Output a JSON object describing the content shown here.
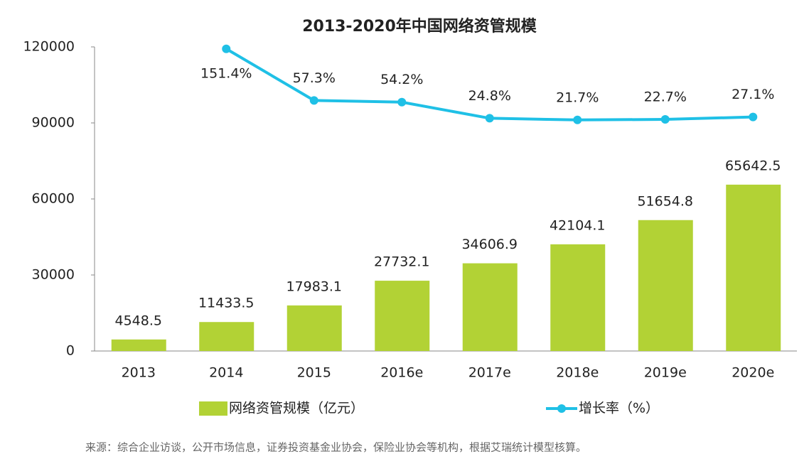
{
  "chart_data": {
    "type": "bar-line",
    "title": "2013-2020年中国网络资管规模",
    "categories": [
      "2013",
      "2014",
      "2015",
      "2016e",
      "2017e",
      "2018e",
      "2019e",
      "2020e"
    ],
    "series": [
      {
        "name": "网络资管规模（亿元）",
        "type": "bar",
        "color": "#b2d235",
        "values": [
          4548.5,
          11433.5,
          17983.1,
          27732.1,
          34606.9,
          42104.1,
          51654.8,
          65642.5
        ]
      },
      {
        "name": "增长率（%）",
        "type": "line",
        "axis": "y2",
        "color": "#1fc0e6",
        "values": [
          null,
          151.4,
          57.3,
          54.2,
          24.8,
          21.7,
          22.7,
          27.1
        ],
        "value_labels": [
          null,
          "151.4%",
          "57.3%",
          "54.2%",
          "24.8%",
          "21.7%",
          "22.7%",
          "27.1%"
        ]
      }
    ],
    "ylim": [
      0,
      120000
    ],
    "yticks": [
      0,
      30000,
      60000,
      90000,
      120000
    ],
    "y2lim": [
      -400,
      155
    ],
    "source": "来源：综合企业访谈，公开市场信息，证券投资基金业协会，保险业协会等机构，根据艾瑞统计模型核算。"
  }
}
